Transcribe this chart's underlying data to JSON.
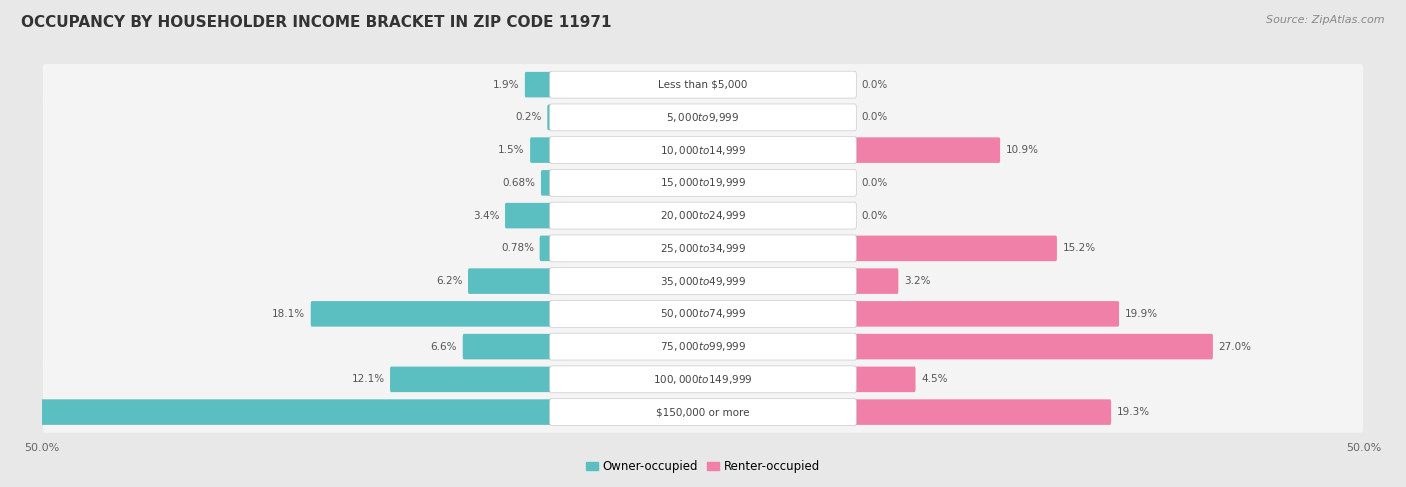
{
  "title": "OCCUPANCY BY HOUSEHOLDER INCOME BRACKET IN ZIP CODE 11971",
  "source": "Source: ZipAtlas.com",
  "categories": [
    "Less than $5,000",
    "$5,000 to $9,999",
    "$10,000 to $14,999",
    "$15,000 to $19,999",
    "$20,000 to $24,999",
    "$25,000 to $34,999",
    "$35,000 to $49,999",
    "$50,000 to $74,999",
    "$75,000 to $99,999",
    "$100,000 to $149,999",
    "$150,000 or more"
  ],
  "owner_values": [
    1.9,
    0.2,
    1.5,
    0.68,
    3.4,
    0.78,
    6.2,
    18.1,
    6.6,
    12.1,
    48.6
  ],
  "renter_values": [
    0.0,
    0.0,
    10.9,
    0.0,
    0.0,
    15.2,
    3.2,
    19.9,
    27.0,
    4.5,
    19.3
  ],
  "owner_color": "#5bbfc2",
  "renter_color": "#f080a8",
  "owner_label": "Owner-occupied",
  "renter_label": "Renter-occupied",
  "background_color": "#e8e8e8",
  "row_color": "#f4f4f4",
  "title_fontsize": 11,
  "source_fontsize": 8,
  "tick_fontsize": 8,
  "category_fontsize": 7.5,
  "value_fontsize": 7.5,
  "axis_max": 50.0,
  "legend_fontsize": 8.5
}
